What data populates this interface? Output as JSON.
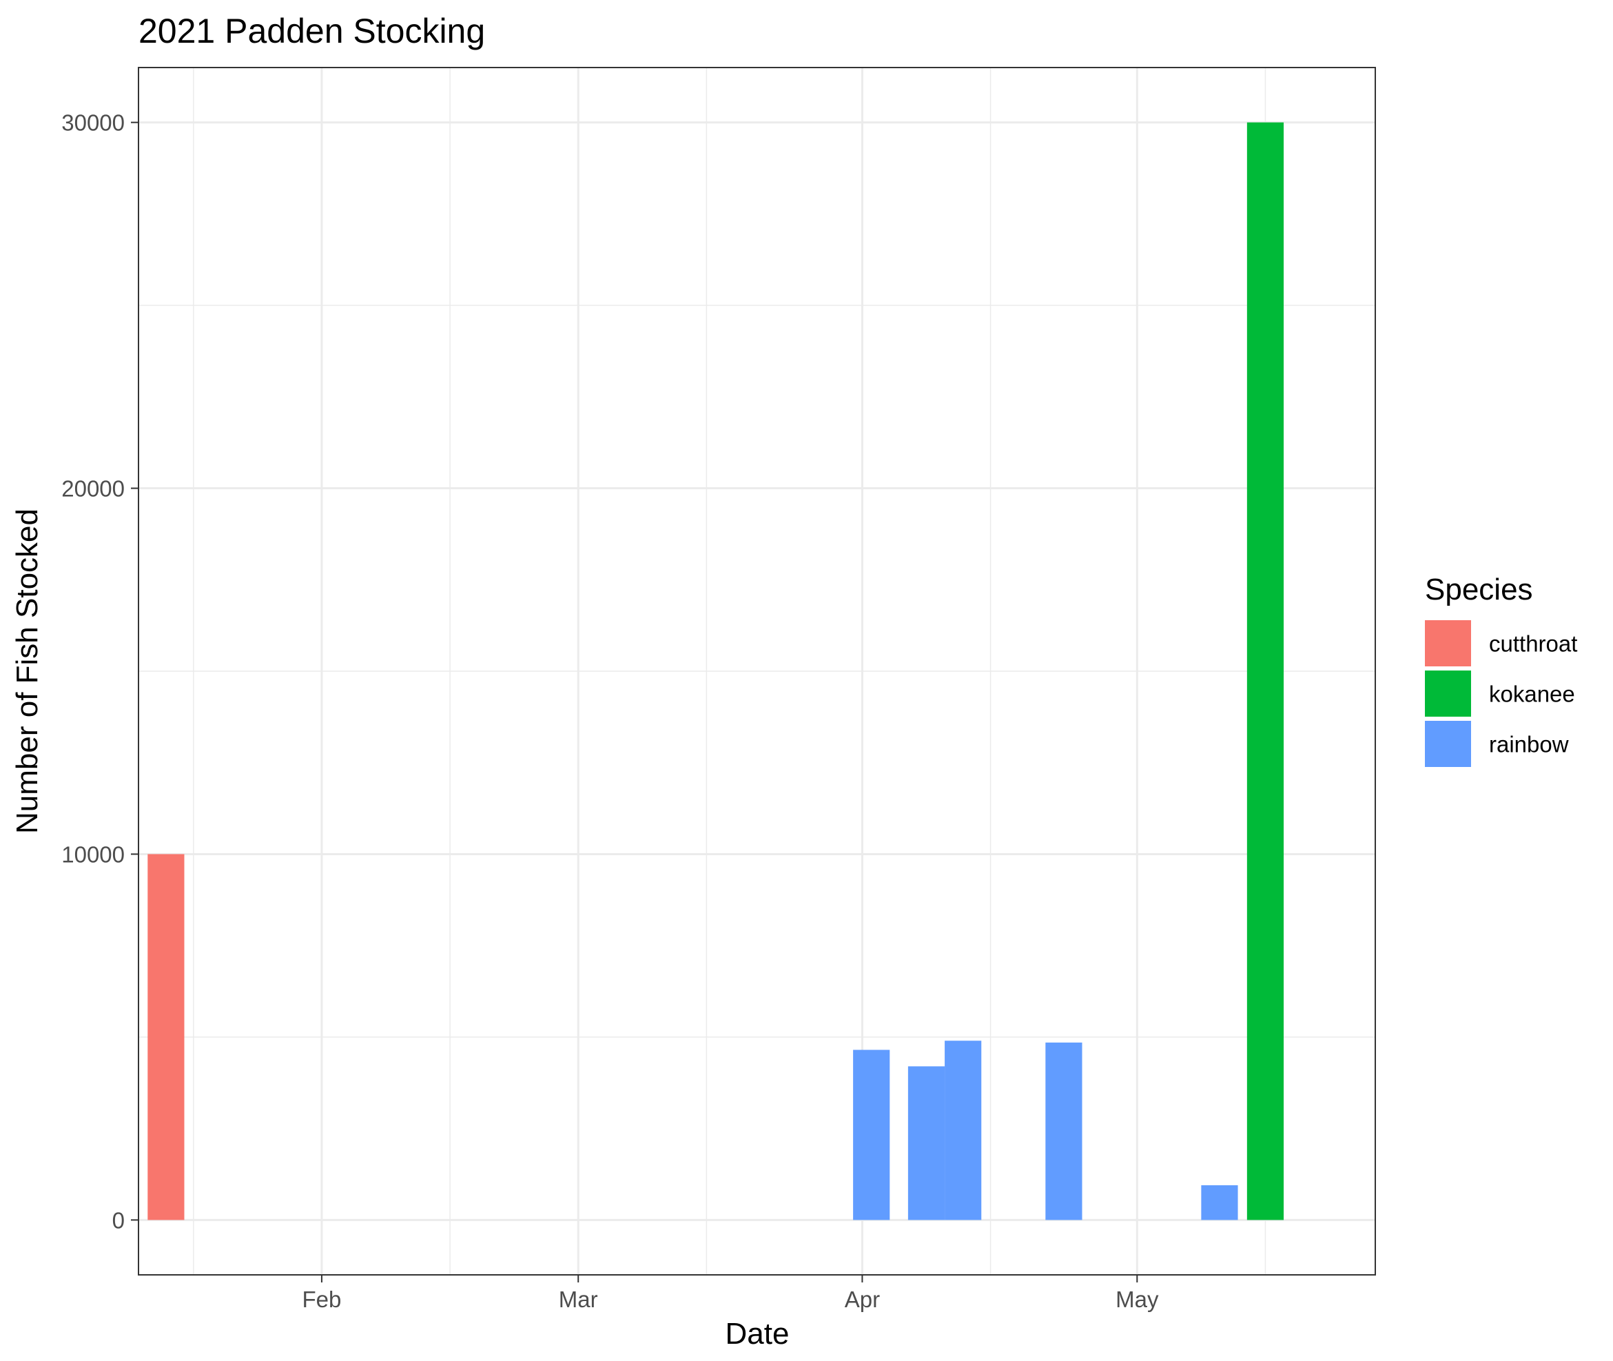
{
  "chart_data": {
    "type": "bar",
    "title": "2021 Padden Stocking",
    "xlabel": "Date",
    "ylabel": "Number of Fish Stocked",
    "x_axis_type": "date",
    "xlim": [
      "2021-01-12",
      "2021-05-27"
    ],
    "ylim": [
      -1500,
      31500
    ],
    "x_ticks": [
      {
        "date": "2021-02-01",
        "label": "Feb"
      },
      {
        "date": "2021-03-01",
        "label": "Mar"
      },
      {
        "date": "2021-04-01",
        "label": "Apr"
      },
      {
        "date": "2021-05-01",
        "label": "May"
      }
    ],
    "x_minor_breaks": [
      "2021-01-18",
      "2021-02-15",
      "2021-03-15",
      "2021-04-15",
      "2021-05-15"
    ],
    "y_ticks": [
      0,
      10000,
      20000,
      30000
    ],
    "y_minor_breaks": [
      5000,
      15000,
      25000
    ],
    "grid": true,
    "legend": {
      "title": "Species",
      "position": "right",
      "entries": [
        {
          "name": "cutthroat",
          "color": "#F8766D"
        },
        {
          "name": "kokanee",
          "color": "#00BA38"
        },
        {
          "name": "rainbow",
          "color": "#619CFF"
        }
      ]
    },
    "bars": [
      {
        "date": "2021-01-15",
        "species": "cutthroat",
        "value": 10000
      },
      {
        "date": "2021-04-02",
        "species": "rainbow",
        "value": 4650
      },
      {
        "date": "2021-04-08",
        "species": "rainbow",
        "value": 4200
      },
      {
        "date": "2021-04-12",
        "species": "rainbow",
        "value": 4900
      },
      {
        "date": "2021-04-23",
        "species": "rainbow",
        "value": 4850
      },
      {
        "date": "2021-05-10",
        "species": "rainbow",
        "value": 950
      },
      {
        "date": "2021-05-15",
        "species": "kokanee",
        "value": 30000
      }
    ]
  }
}
